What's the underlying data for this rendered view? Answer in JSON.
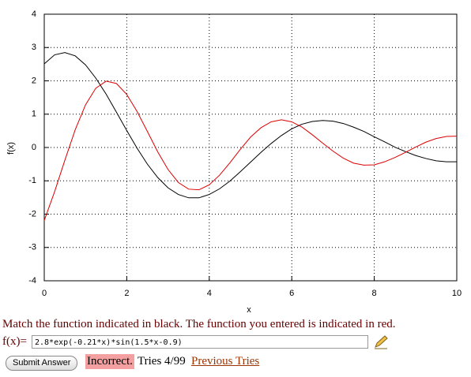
{
  "chart_data": {
    "type": "line",
    "xlabel": "x",
    "ylabel": "f(x)",
    "x": [
      0,
      0.25,
      0.5,
      0.75,
      1,
      1.25,
      1.5,
      1.75,
      2,
      2.25,
      2.5,
      2.75,
      3,
      3.25,
      3.5,
      3.75,
      4,
      4.25,
      4.5,
      4.75,
      5,
      5.25,
      5.5,
      5.75,
      6,
      6.25,
      6.5,
      6.75,
      7,
      7.25,
      7.5,
      7.75,
      8,
      8.25,
      8.5,
      8.75,
      9,
      9.25,
      9.5,
      9.75,
      10
    ],
    "series": [
      {
        "color": "#000000",
        "values": [
          2.51,
          2.78,
          2.85,
          2.75,
          2.48,
          2.08,
          1.6,
          1.06,
          0.51,
          -0.02,
          -0.5,
          -0.9,
          -1.21,
          -1.41,
          -1.51,
          -1.51,
          -1.41,
          -1.24,
          -1.01,
          -0.73,
          -0.44,
          -0.15,
          0.12,
          0.36,
          0.56,
          0.7,
          0.78,
          0.81,
          0.79,
          0.72,
          0.61,
          0.48,
          0.32,
          0.17,
          0.01,
          -0.12,
          -0.24,
          -0.33,
          -0.4,
          -0.43,
          -0.43
        ]
      },
      {
        "color": "#dd0000",
        "values": [
          -2.19,
          -1.33,
          -0.38,
          0.53,
          1.28,
          1.78,
          1.99,
          1.92,
          1.59,
          1.08,
          0.48,
          -0.13,
          -0.66,
          -1.05,
          -1.25,
          -1.27,
          -1.12,
          -0.83,
          -0.46,
          -0.06,
          0.31,
          0.59,
          0.77,
          0.83,
          0.77,
          0.61,
          0.38,
          0.13,
          -0.11,
          -0.32,
          -0.47,
          -0.53,
          -0.52,
          -0.43,
          -0.3,
          -0.15,
          0.01,
          0.16,
          0.27,
          0.33,
          0.34
        ]
      }
    ],
    "xlim": [
      0,
      10
    ],
    "xticks": [
      0,
      2,
      4,
      6,
      8,
      10
    ],
    "ylim": [
      -4,
      4
    ],
    "yticks": [
      -4,
      -3,
      -2,
      -1,
      0,
      1,
      2,
      3,
      4
    ],
    "grid": true
  },
  "form": {
    "instruction": "Match the function indicated in black. The function you entered is indicated in red.",
    "input_label": "f(x)=",
    "input_value": "2.8*exp(-0.21*x)*sin(1.5*x-0.9)",
    "submit_button": "Submit Answer",
    "result": "Incorrect.",
    "tries": "Tries 4/99",
    "link": "Previous Tries"
  }
}
